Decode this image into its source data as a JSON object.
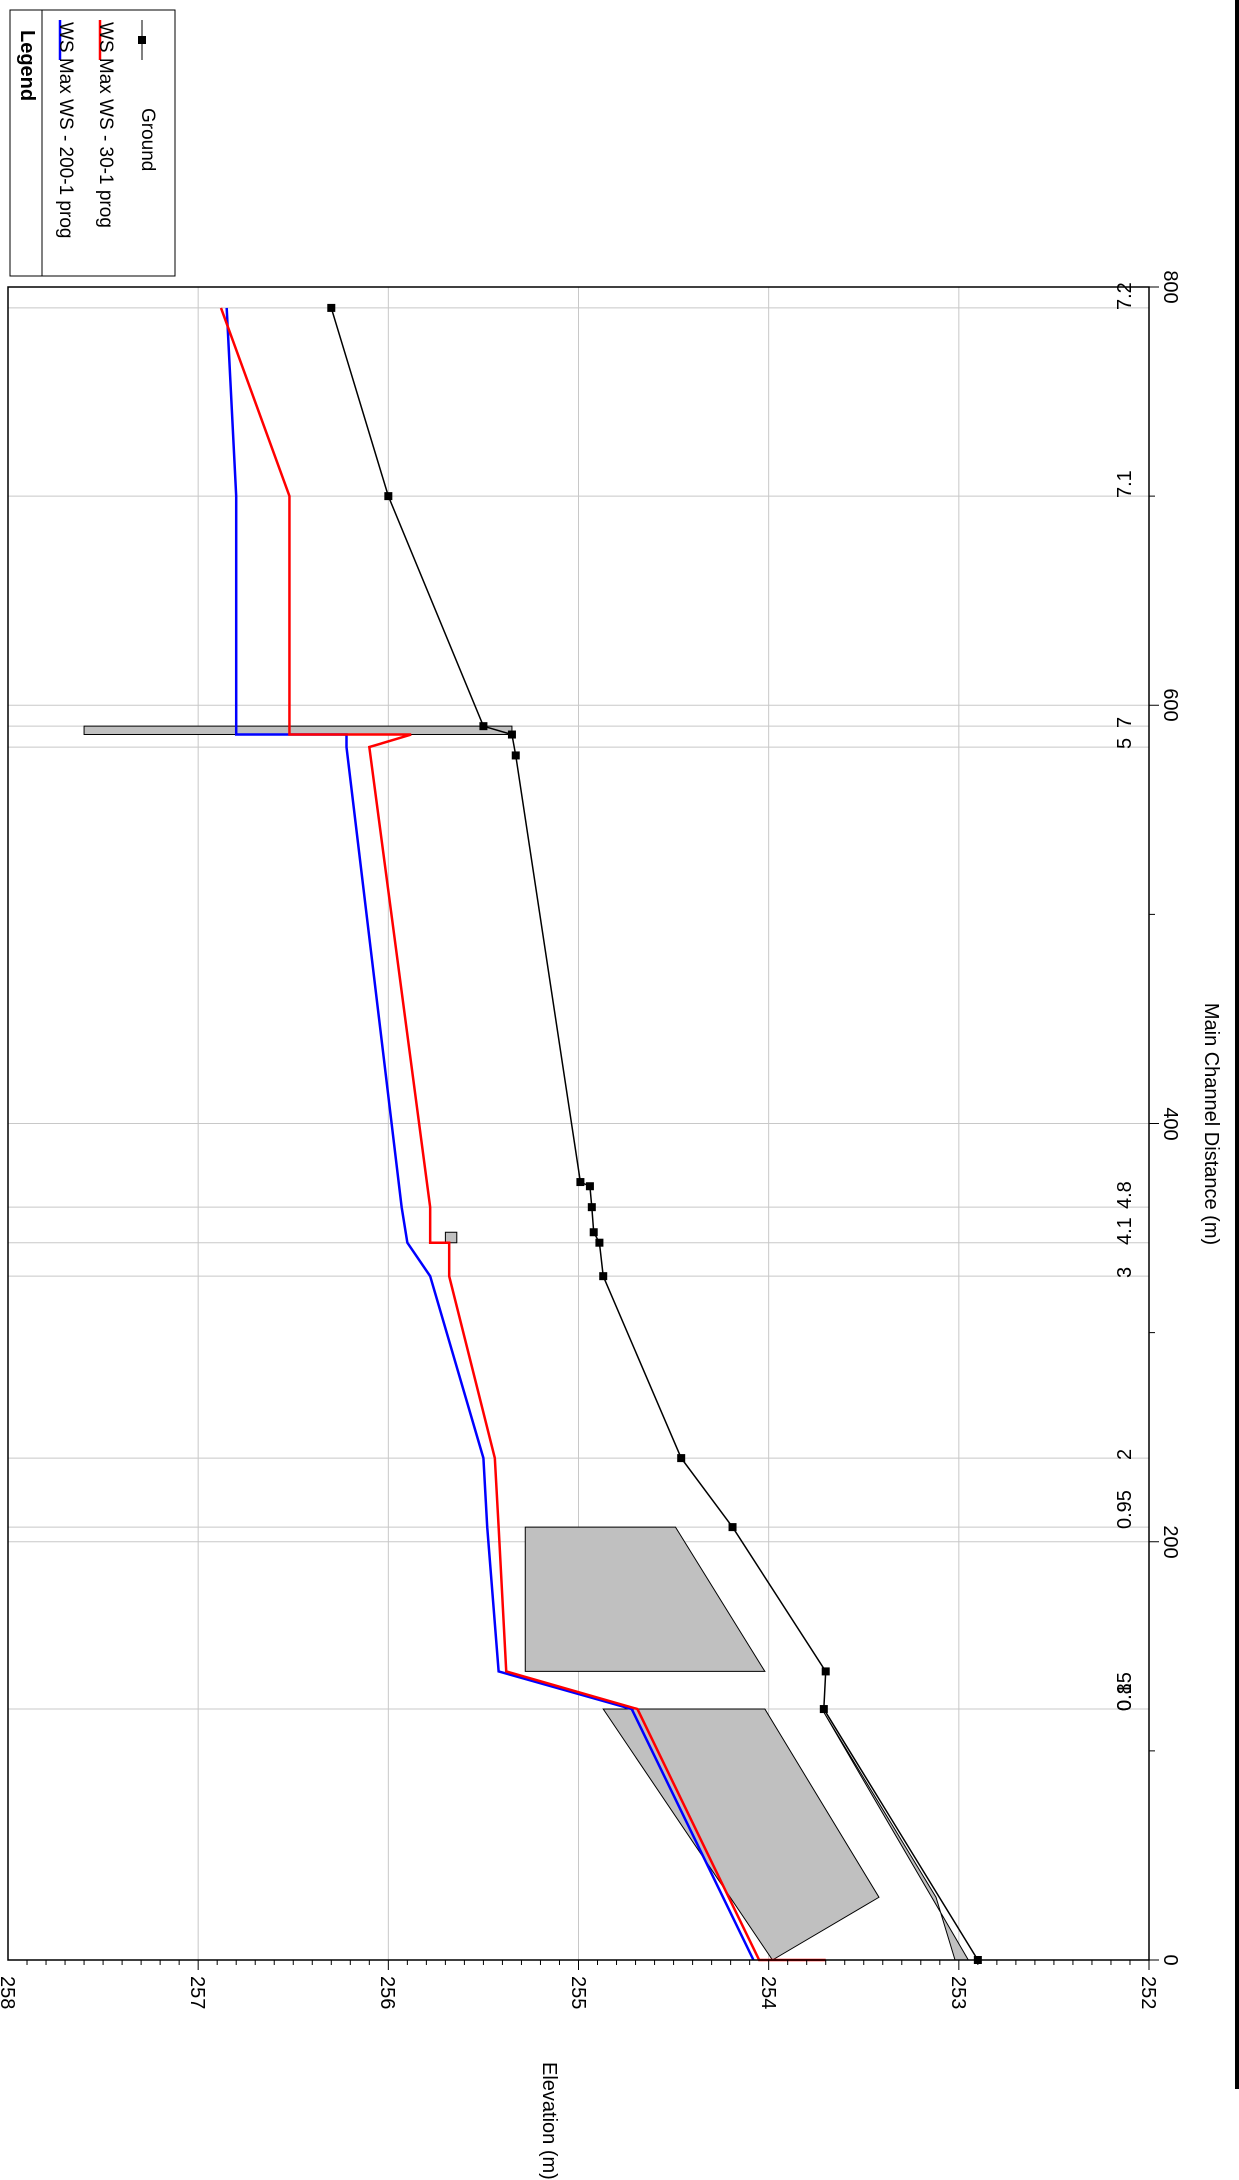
{
  "chart_data": {
    "type": "line",
    "title": "",
    "xlabel": "Main Channel Distance (m)",
    "ylabel": "Elevation (m)",
    "xlim": [
      0,
      800
    ],
    "ylim": [
      252,
      258
    ],
    "x_ticks": [
      "0",
      "200",
      "400",
      "600",
      "800"
    ],
    "y_ticks": [
      "252",
      "253",
      "254",
      "255",
      "256",
      "257",
      "258"
    ],
    "grid": true,
    "orientation": "rotated 90° clockwise",
    "legend": {
      "title": "Legend",
      "position": "top-left",
      "entries": [
        {
          "label": "WS  Max WS - 200-1 prog",
          "color": "#0000ff",
          "marker": "line"
        },
        {
          "label": "WS  Max WS - 30-1 prog",
          "color": "#ff0000",
          "marker": "line"
        },
        {
          "label": "Ground",
          "color": "#000000",
          "marker": "square"
        }
      ]
    },
    "cross_sections": [
      {
        "label": "0.15",
        "x": 120
      },
      {
        "label": "0.8",
        "x": 120
      },
      {
        "label": "0.95",
        "x": 207
      },
      {
        "label": "2",
        "x": 240
      },
      {
        "label": "3",
        "x": 327
      },
      {
        "label": "4.1",
        "x": 343
      },
      {
        "label": "4.8",
        "x": 360
      },
      {
        "label": "5",
        "x": 580
      },
      {
        "label": "7",
        "x": 590
      },
      {
        "label": "7.1",
        "x": 700
      },
      {
        "label": "7.2",
        "x": 790
      }
    ],
    "series": [
      {
        "name": "WS  Max WS - 200-1 prog",
        "color": "#0000ff",
        "x": [
          0,
          120,
          120,
          138,
          207,
          240,
          327,
          343,
          360,
          580,
          586,
          586,
          700,
          790
        ],
        "y": [
          254.08,
          254.72,
          254.72,
          255.42,
          255.48,
          255.5,
          255.78,
          255.9,
          255.93,
          256.22,
          256.22,
          256.8,
          256.8,
          256.85
        ]
      },
      {
        "name": "WS  Max WS - 30-1 prog",
        "color": "#ff0000",
        "x": [
          0,
          0,
          120,
          120,
          138,
          207,
          240,
          327,
          343,
          343,
          360,
          580,
          586,
          586,
          700,
          790
        ],
        "y": [
          253.7,
          254.05,
          254.69,
          254.69,
          255.38,
          255.42,
          255.44,
          255.68,
          255.68,
          255.78,
          255.78,
          256.1,
          255.88,
          256.52,
          256.52,
          256.88
        ]
      },
      {
        "name": "Ground",
        "color": "#000000",
        "x": [
          0,
          120,
          138,
          207,
          240,
          327,
          343,
          348,
          360,
          370,
          372,
          576,
          586,
          590,
          700,
          790
        ],
        "y": [
          252.9,
          253.71,
          253.7,
          254.19,
          254.46,
          254.87,
          254.89,
          254.92,
          254.93,
          254.94,
          254.99,
          255.33,
          255.35,
          255.5,
          256.0,
          256.3
        ]
      }
    ],
    "structures": [
      {
        "name": "culvert-inlet",
        "fill": "#c0c0c0",
        "points": [
          [
            0,
            253.98
          ],
          [
            120,
            254.87
          ],
          [
            120,
            254.02
          ],
          [
            30,
            253.42
          ]
        ]
      },
      {
        "name": "culvert-invert",
        "fill": "#c0c0c0",
        "points": [
          [
            0,
            252.95
          ],
          [
            120,
            253.72
          ],
          [
            30,
            253.12
          ],
          [
            0,
            253.02
          ]
        ]
      },
      {
        "name": "bridge-deck",
        "fill": "#c0c0c0",
        "points": [
          [
            138,
            255.28
          ],
          [
            207,
            255.28
          ],
          [
            207,
            254.49
          ],
          [
            138,
            254.02
          ]
        ]
      },
      {
        "name": "weir-small",
        "fill": "#c0c0c0",
        "points": [
          [
            343,
            255.7
          ],
          [
            348,
            255.7
          ],
          [
            348,
            255.64
          ],
          [
            343,
            255.64
          ]
        ]
      },
      {
        "name": "weir-large",
        "fill": "#c0c0c0",
        "points": [
          [
            586,
            257.6
          ],
          [
            590,
            257.6
          ],
          [
            590,
            255.35
          ],
          [
            586,
            255.35
          ]
        ]
      }
    ]
  }
}
